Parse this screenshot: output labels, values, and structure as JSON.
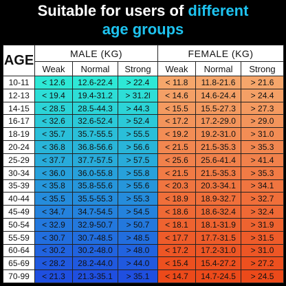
{
  "header": {
    "line1_prefix": "Suitable for users of",
    "line1_highlight": "different",
    "line2": "age groups"
  },
  "table": {
    "age_label": "AGE",
    "male_label": "MALE (KG)",
    "female_label": "FEMALE (KG)",
    "sub_labels": [
      "Weak",
      "Normal",
      "Strong",
      "Weak",
      "Normal",
      "Strong"
    ],
    "rows": [
      [
        "10-11",
        "< 12.6",
        "12.6-22.4",
        "> 22.4",
        "< 11.8",
        "11.8-21.6",
        "> 21.6"
      ],
      [
        "12-13",
        "< 19.4",
        "19.4-31.2",
        "> 31.2l",
        "< 14.6",
        "14.6-24.4",
        "> 24.4"
      ],
      [
        "14-15",
        "< 28.5",
        "28.5-44.3",
        "> 44.3",
        "< 15.5",
        "15.5-27.3",
        "> 27.3"
      ],
      [
        "16-17",
        "< 32.6",
        "32.6-52.4",
        "> 52.4",
        "< 17.2",
        "17.2-29.0",
        "> 29.0"
      ],
      [
        "18-19",
        "< 35.7",
        "35.7-55.5",
        "> 55.5",
        "< 19.2",
        "19.2-31.0",
        "> 31.0"
      ],
      [
        "20-24",
        "< 36.8",
        "36.8-56.6",
        "> 56.6",
        "< 21.5",
        "21.5-35.3",
        "> 35.3"
      ],
      [
        "25-29",
        "< 37.7",
        "37.7-57.5",
        "> 57.5",
        "< 25.6",
        "25.6-41.4",
        "> 41.4"
      ],
      [
        "30-34",
        "< 36.0",
        "36.0-55.8",
        "> 55.8",
        "< 21.5",
        "21.5-35.3",
        "> 35.3"
      ],
      [
        "35-39",
        "< 35.8",
        "35.8-55.6",
        "> 55.6",
        "< 20.3",
        "20.3-34.1",
        "> 34.1"
      ],
      [
        "40-44",
        "< 35.5",
        "35.5-55.3",
        "> 55.3",
        "< 18.9",
        "18.9-32.7",
        "> 32.7"
      ],
      [
        "45-49",
        "< 34.7",
        "34.7-54.5",
        "> 54.5",
        "< 18.6",
        "18.6-32.4",
        "> 32.4"
      ],
      [
        "50-54",
        "< 32.9",
        "32.9-50.7",
        "> 50.7",
        "< 18.1",
        "18.1-31.9",
        "> 31.9"
      ],
      [
        "55-59",
        "< 30.7",
        "30.7-48.5",
        "> 48.5",
        "< 17.7",
        "17.7-31.5",
        "> 31.5"
      ],
      [
        "60-64",
        "< 30.2",
        "30.2-48.0",
        "> 48.0",
        "< 17.2",
        "17.2-31.0",
        "> 31.0"
      ],
      [
        "65-69",
        "< 28.2",
        "28.2-44.0",
        "> 44.0",
        "< 15.4",
        "15.4-27.2",
        "> 27.2"
      ],
      [
        "70-99",
        "< 21.3",
        "21.3-35.1",
        "> 35.1",
        "< 14.7",
        "14.7-24.5",
        "> 24.5"
      ]
    ]
  },
  "colors": {
    "highlight": "#1ec3f0",
    "male_top": "#2ee8d6",
    "male_bottom": "#1f4fe0",
    "female_top": "#f5a66b",
    "female_bottom": "#ec4a1a"
  }
}
